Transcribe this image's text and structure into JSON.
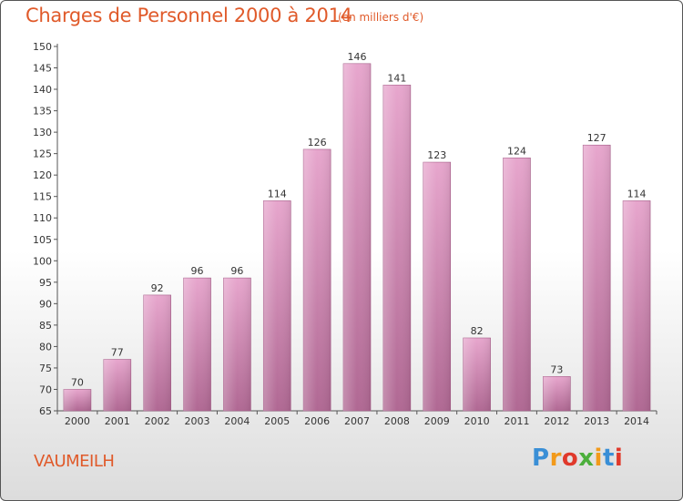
{
  "chart_data": {
    "type": "bar",
    "title": "Charges de Personnel 2000 à 2014",
    "subtitle": "(en milliers d'€)",
    "categories": [
      "2000",
      "2001",
      "2002",
      "2003",
      "2004",
      "2005",
      "2006",
      "2007",
      "2008",
      "2009",
      "2010",
      "2011",
      "2012",
      "2013",
      "2014"
    ],
    "values": [
      70,
      77,
      92,
      96,
      96,
      114,
      126,
      146,
      141,
      123,
      82,
      124,
      73,
      127,
      114
    ],
    "ylim": [
      65,
      150
    ],
    "ytick_step": 5,
    "grid": false,
    "bar_color": "#d98fb8",
    "bar_color_dark": "#b96d98"
  },
  "commune": "VAUMEILH",
  "logo": {
    "letters": [
      "P",
      "r",
      "o",
      "x",
      "i",
      "t",
      "i"
    ],
    "colors": [
      "#3a8fd6",
      "#f29a1a",
      "#e0392b",
      "#4caf3c",
      "#f29a1a",
      "#3a8fd6",
      "#e0392b"
    ]
  },
  "colors": {
    "text_accent": "#e05a2a"
  }
}
